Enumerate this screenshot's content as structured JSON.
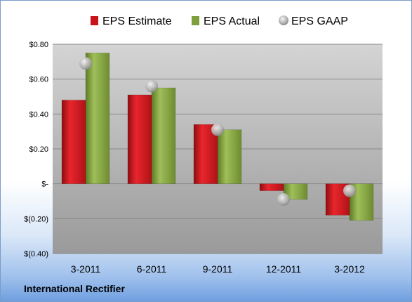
{
  "company_name": "International Rectifier",
  "colors": {
    "estimate": "#c8151b",
    "actual": "#7f9f3c",
    "gaap": "#b4b4b4",
    "plot_top": "#d4d4d4",
    "plot_bottom": "#9a9a9a"
  },
  "chart_data": {
    "type": "bar",
    "title": "",
    "xlabel": "",
    "ylabel": "",
    "categories": [
      "3-2011",
      "6-2011",
      "9-2011",
      "12-2011",
      "3-2012"
    ],
    "series": [
      {
        "name": "EPS Estimate",
        "kind": "bar",
        "values": [
          0.48,
          0.51,
          0.34,
          -0.04,
          -0.18
        ]
      },
      {
        "name": "EPS Actual",
        "kind": "bar",
        "values": [
          0.75,
          0.55,
          0.31,
          -0.09,
          -0.21
        ]
      },
      {
        "name": "EPS GAAP",
        "kind": "marker",
        "values": [
          0.69,
          0.56,
          0.31,
          -0.09,
          -0.04
        ]
      }
    ],
    "ylim": [
      -0.4,
      0.8
    ],
    "yticks": [
      0.8,
      0.6,
      0.4,
      0.2,
      0,
      -0.2,
      -0.4
    ],
    "ytick_labels": [
      "$0.80",
      "$0.60",
      "$0.40",
      "$0.20",
      "$-",
      "$(0.20)",
      "$(0.40)"
    ],
    "grid": true,
    "legend": "top"
  }
}
